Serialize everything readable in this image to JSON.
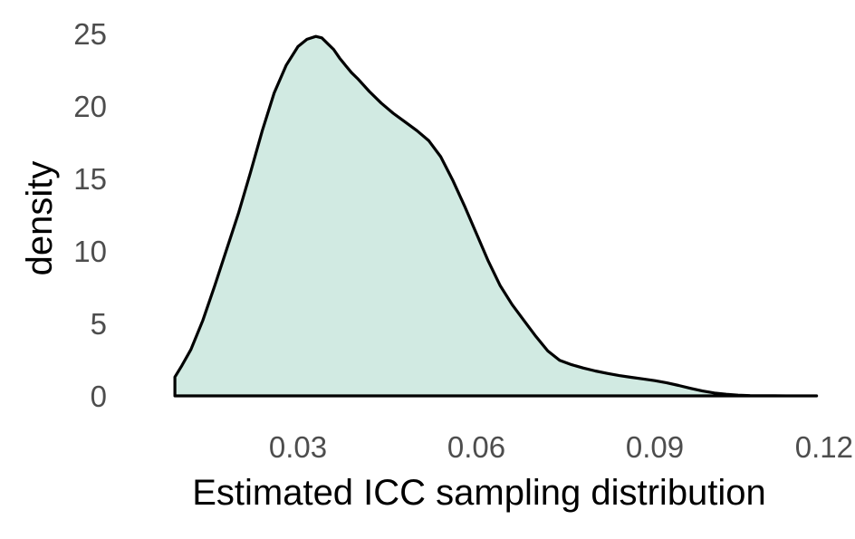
{
  "chart_data": {
    "type": "area",
    "subtype": "density",
    "title": "",
    "xlabel": "Estimated ICC sampling distribution",
    "ylabel": "density",
    "xlim": [
      0.0,
      0.12
    ],
    "ylim": [
      0,
      25
    ],
    "x_ticks": [
      0.03,
      0.06,
      0.09,
      0.12
    ],
    "x_tick_labels": [
      "0.03",
      "0.06",
      "0.09",
      "0.12"
    ],
    "y_ticks": [
      0,
      5,
      10,
      15,
      20,
      25
    ],
    "y_tick_labels": [
      "0",
      "5",
      "10",
      "15",
      "20",
      "25"
    ],
    "grid": false,
    "legend": "none",
    "colors": {
      "fill": "#d1eae2",
      "line": "#000000"
    },
    "series": [
      {
        "x": [
          0.0093,
          0.0105,
          0.012,
          0.014,
          0.016,
          0.018,
          0.02,
          0.022,
          0.024,
          0.026,
          0.028,
          0.03,
          0.0315,
          0.033,
          0.034,
          0.035,
          0.036,
          0.037,
          0.038,
          0.039,
          0.04,
          0.042,
          0.044,
          0.046,
          0.048,
          0.05,
          0.052,
          0.054,
          0.056,
          0.058,
          0.06,
          0.062,
          0.064,
          0.066,
          0.068,
          0.07,
          0.072,
          0.074,
          0.076,
          0.078,
          0.08,
          0.082,
          0.084,
          0.086,
          0.088,
          0.09,
          0.092,
          0.094,
          0.096,
          0.098,
          0.1,
          0.102,
          0.104,
          0.106,
          0.108,
          0.11,
          0.112,
          0.114,
          0.116,
          0.1172
        ],
        "values": [
          1.3,
          2.1,
          3.2,
          5.2,
          7.6,
          10.1,
          12.6,
          15.4,
          18.3,
          20.9,
          22.8,
          24.1,
          24.6,
          24.8,
          24.7,
          24.3,
          23.9,
          23.3,
          22.8,
          22.3,
          21.9,
          21.0,
          20.2,
          19.5,
          18.9,
          18.3,
          17.6,
          16.5,
          14.9,
          13.1,
          11.2,
          9.3,
          7.6,
          6.3,
          5.2,
          4.1,
          3.1,
          2.45,
          2.15,
          1.92,
          1.72,
          1.55,
          1.4,
          1.28,
          1.17,
          1.05,
          0.9,
          0.72,
          0.52,
          0.34,
          0.2,
          0.11,
          0.05,
          0.02,
          0.01,
          0.005,
          0.0,
          0.0,
          0.0,
          0.0
        ]
      }
    ]
  }
}
